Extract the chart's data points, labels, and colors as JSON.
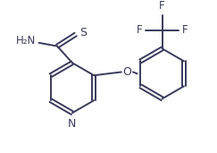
{
  "bg_color": "#ffffff",
  "bond_color": "#3a3a5c",
  "text_color": "#3a3a5c",
  "bond_lw": 1.4,
  "font_size": 8.5,
  "fig_w": 2.43,
  "fig_h": 1.71,
  "dpi": 100,
  "xlim": [
    0,
    243
  ],
  "ylim": [
    0,
    171
  ]
}
